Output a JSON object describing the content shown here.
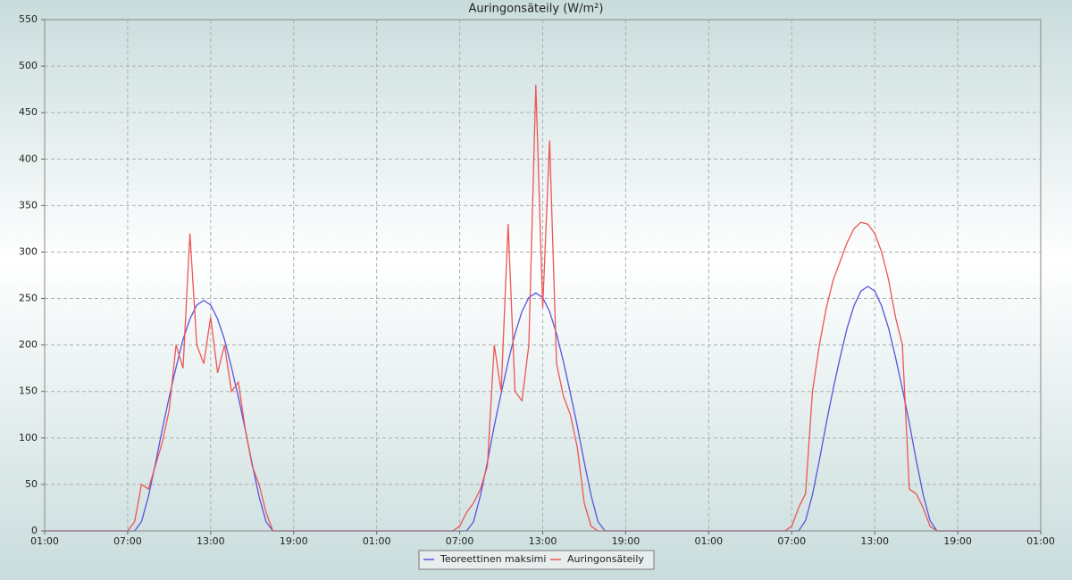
{
  "chart_data": {
    "type": "line",
    "title": "Auringonsäteily (W/m²)",
    "x": [
      0,
      0.5,
      1,
      1.5,
      2,
      2.5,
      3,
      3.5,
      4,
      4.5,
      5,
      5.5,
      6,
      6.5,
      7,
      7.5,
      8,
      8.5,
      9,
      9.5,
      10,
      10.5,
      11,
      11.5,
      12,
      12.5,
      13,
      13.5,
      14,
      14.5,
      15,
      15.5,
      16,
      16.5,
      17,
      17.5,
      18,
      18.5,
      19,
      19.5,
      20,
      20.5,
      21,
      21.5,
      22,
      22.5,
      23,
      23.5,
      24,
      24.5,
      25,
      25.5,
      26,
      26.5,
      27,
      27.5,
      28,
      28.5,
      29,
      29.5,
      30,
      30.5,
      31,
      31.5,
      32,
      32.5,
      33,
      33.5,
      34,
      34.5,
      35,
      35.5,
      36,
      36.5,
      37,
      37.5,
      38,
      38.5,
      39,
      39.5,
      40,
      40.5,
      41,
      41.5,
      42,
      42.5,
      43,
      43.5,
      44,
      44.5,
      45,
      45.5,
      46,
      46.5,
      47,
      47.5,
      48,
      48.5,
      49,
      49.5,
      50,
      50.5,
      51,
      51.5,
      52,
      52.5,
      53,
      53.5,
      54,
      54.5,
      55,
      55.5,
      56,
      56.5,
      57,
      57.5,
      58,
      58.5,
      59,
      59.5,
      60,
      60.5,
      61,
      61.5,
      62,
      62.5,
      63,
      63.5,
      64,
      64.5,
      65,
      65.5,
      66,
      66.5,
      67,
      67.5,
      68,
      68.5,
      69,
      69.5,
      70,
      70.5,
      71,
      71.5,
      72
    ],
    "series": [
      {
        "name": "Teoreettinen maksimi",
        "color": "#5555dd",
        "values": [
          0,
          0,
          0,
          0,
          0,
          0,
          0,
          0,
          0,
          0,
          0,
          0,
          0,
          0,
          10,
          37,
          72,
          109,
          144,
          176,
          206,
          228,
          243,
          248,
          243,
          228,
          206,
          176,
          144,
          109,
          72,
          37,
          10,
          0,
          0,
          0,
          0,
          0,
          0,
          0,
          0,
          0,
          0,
          0,
          0,
          0,
          0,
          0,
          0,
          0,
          0,
          0,
          0,
          0,
          0,
          0,
          0,
          0,
          0,
          0,
          0,
          0,
          10,
          38,
          74,
          113,
          148,
          182,
          212,
          236,
          251,
          256,
          251,
          236,
          212,
          182,
          148,
          113,
          74,
          38,
          10,
          0,
          0,
          0,
          0,
          0,
          0,
          0,
          0,
          0,
          0,
          0,
          0,
          0,
          0,
          0,
          0,
          0,
          0,
          0,
          0,
          0,
          0,
          0,
          0,
          0,
          0,
          0,
          0,
          0,
          11,
          39,
          76,
          116,
          153,
          187,
          218,
          242,
          258,
          263,
          258,
          242,
          218,
          187,
          153,
          116,
          76,
          39,
          11,
          0,
          0,
          0,
          0,
          0,
          0,
          0,
          0,
          0,
          0,
          0,
          0,
          0,
          0,
          0,
          0
        ]
      },
      {
        "name": "Auringonsäteily",
        "color": "#ee5555",
        "values": [
          0,
          0,
          0,
          0,
          0,
          0,
          0,
          0,
          0,
          0,
          0,
          0,
          0,
          10,
          50,
          45,
          70,
          95,
          130,
          200,
          175,
          320,
          200,
          180,
          230,
          170,
          200,
          150,
          160,
          110,
          70,
          50,
          20,
          0,
          0,
          0,
          0,
          0,
          0,
          0,
          0,
          0,
          0,
          0,
          0,
          0,
          0,
          0,
          0,
          0,
          0,
          0,
          0,
          0,
          0,
          0,
          0,
          0,
          0,
          0,
          5,
          20,
          30,
          45,
          70,
          200,
          150,
          330,
          150,
          140,
          200,
          480,
          240,
          420,
          180,
          145,
          125,
          90,
          30,
          5,
          0,
          0,
          0,
          0,
          0,
          0,
          0,
          0,
          0,
          0,
          0,
          0,
          0,
          0,
          0,
          0,
          0,
          0,
          0,
          0,
          0,
          0,
          0,
          0,
          0,
          0,
          0,
          0,
          5,
          25,
          40,
          150,
          200,
          240,
          270,
          290,
          310,
          325,
          332,
          330,
          320,
          300,
          270,
          230,
          200,
          45,
          40,
          25,
          5,
          0,
          0,
          0,
          0,
          0,
          0,
          0,
          0,
          0,
          0,
          0,
          0,
          0,
          0,
          0,
          0
        ]
      }
    ],
    "xlim": [
      0,
      72
    ],
    "xticks": [
      {
        "value": 0,
        "label": "01:00"
      },
      {
        "value": 6,
        "label": "07:00"
      },
      {
        "value": 12,
        "label": "13:00"
      },
      {
        "value": 18,
        "label": "19:00"
      },
      {
        "value": 24,
        "label": "01:00"
      },
      {
        "value": 30,
        "label": "07:00"
      },
      {
        "value": 36,
        "label": "13:00"
      },
      {
        "value": 42,
        "label": "19:00"
      },
      {
        "value": 48,
        "label": "01:00"
      },
      {
        "value": 54,
        "label": "07:00"
      },
      {
        "value": 60,
        "label": "13:00"
      },
      {
        "value": 66,
        "label": "19:00"
      },
      {
        "value": 72,
        "label": "01:00"
      }
    ],
    "ylim": [
      0,
      550
    ],
    "yticks": [
      0,
      50,
      100,
      150,
      200,
      250,
      300,
      350,
      400,
      450,
      500,
      550
    ],
    "grid": true
  }
}
